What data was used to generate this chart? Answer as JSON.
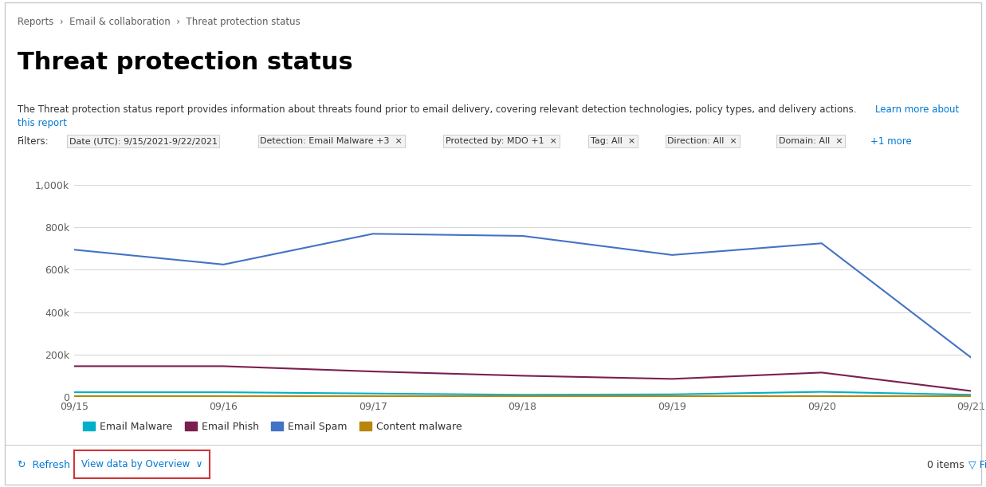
{
  "title": "Threat protection status",
  "breadcrumb": "Reports  ›  Email & collaboration  ›  Threat protection status",
  "description": "The Threat protection status report provides information about threats found prior to email delivery, covering relevant detection technologies, policy types, and delivery actions.",
  "learn_more": "Learn more about\nthis report",
  "filters_label": "Filters:",
  "filters": [
    {
      "text": "Date (UTC): 9/15/2021-9/22/2021",
      "has_x": false,
      "is_link": false
    },
    {
      "text": "Detection: Email Malware +3",
      "has_x": true,
      "is_link": false
    },
    {
      "text": "Protected by: MDO +1",
      "has_x": true,
      "is_link": false
    },
    {
      "text": "Tag: All",
      "has_x": true,
      "is_link": false
    },
    {
      "text": "Direction: All",
      "has_x": true,
      "is_link": false
    },
    {
      "text": "Domain: All",
      "has_x": true,
      "is_link": false
    },
    {
      "text": "+1 more",
      "has_x": false,
      "is_link": true
    }
  ],
  "x_labels": [
    "09/15",
    "09/16",
    "09/17",
    "09/18",
    "09/19",
    "09/20",
    "09/21"
  ],
  "y_ticks": [
    0,
    200000,
    400000,
    600000,
    800000,
    1000000
  ],
  "y_tick_labels": [
    "0",
    "200k",
    "400k",
    "600k",
    "800k",
    "1,000k"
  ],
  "series": {
    "Email Spam": {
      "color": "#4472C4",
      "values": [
        695000,
        625000,
        770000,
        760000,
        670000,
        725000,
        185000
      ]
    },
    "Email Phish": {
      "color": "#7B1E50",
      "values": [
        145000,
        145000,
        120000,
        100000,
        85000,
        115000,
        28000
      ]
    },
    "Email Malware": {
      "color": "#00B0C8",
      "values": [
        22000,
        22000,
        16000,
        10000,
        12000,
        24000,
        10000
      ]
    },
    "Content malware": {
      "color": "#B8860B",
      "values": [
        4000,
        4000,
        4000,
        4000,
        4000,
        4000,
        4000
      ]
    }
  },
  "legend_order": [
    "Email Malware",
    "Email Phish",
    "Email Spam",
    "Content malware"
  ],
  "background_color": "#ffffff",
  "grid_color": "#d9d9d9",
  "filter_bg_color": "#f2f2f2",
  "filter_border_color": "#c8c8c8",
  "link_color": "#0078D4",
  "text_color": "#333333",
  "light_text_color": "#605e5c"
}
